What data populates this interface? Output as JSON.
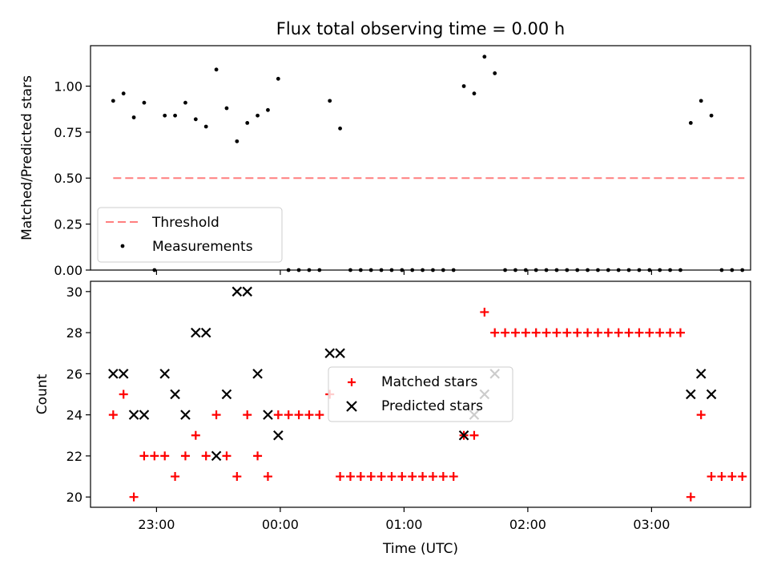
{
  "figure": {
    "title": "Flux total observing time = 0.00 h",
    "xlabel": "Time (UTC)"
  },
  "chart_data": [
    {
      "type": "scatter",
      "ylabel": "Matched/Predicted stars",
      "ylim": [
        0,
        1.22
      ],
      "yticks": [
        0.0,
        0.25,
        0.5,
        0.75,
        1.0
      ],
      "ytick_labels": [
        "0.00",
        "0.25",
        "0.50",
        "0.75",
        "1.00"
      ],
      "xlim": [
        "22:28",
        "03:48"
      ],
      "xticks": [
        "23:00",
        "00:00",
        "01:00",
        "02:00",
        "03:00"
      ],
      "legend_position": "lower-left",
      "series": [
        {
          "name": "Threshold",
          "kind": "dashed-line",
          "color": "#ff7f7f",
          "points": [
            [
              "22:39",
              0.5
            ],
            [
              "03:45",
              0.5
            ]
          ]
        },
        {
          "name": "Measurements",
          "kind": "dot",
          "color": "#000000",
          "points": [
            [
              "22:39",
              0.92
            ],
            [
              "22:44",
              0.96
            ],
            [
              "22:49",
              0.83
            ],
            [
              "22:54",
              0.91
            ],
            [
              "22:59",
              0.0
            ],
            [
              "23:04",
              0.84
            ],
            [
              "23:09",
              0.84
            ],
            [
              "23:14",
              0.91
            ],
            [
              "23:19",
              0.82
            ],
            [
              "23:24",
              0.78
            ],
            [
              "23:29",
              1.09
            ],
            [
              "23:34",
              0.88
            ],
            [
              "23:39",
              0.7
            ],
            [
              "23:44",
              0.8
            ],
            [
              "23:49",
              0.84
            ],
            [
              "23:54",
              0.87
            ],
            [
              "23:59",
              1.04
            ],
            [
              "00:04",
              0.0
            ],
            [
              "00:09",
              0.0
            ],
            [
              "00:14",
              0.0
            ],
            [
              "00:19",
              0.0
            ],
            [
              "00:24",
              0.92
            ],
            [
              "00:29",
              0.77
            ],
            [
              "00:34",
              0.0
            ],
            [
              "00:39",
              0.0
            ],
            [
              "00:44",
              0.0
            ],
            [
              "00:49",
              0.0
            ],
            [
              "00:54",
              0.0
            ],
            [
              "00:59",
              0.0
            ],
            [
              "01:04",
              0.0
            ],
            [
              "01:09",
              0.0
            ],
            [
              "01:14",
              0.0
            ],
            [
              "01:19",
              0.0
            ],
            [
              "01:24",
              0.0
            ],
            [
              "01:29",
              1.0
            ],
            [
              "01:34",
              0.96
            ],
            [
              "01:39",
              1.16
            ],
            [
              "01:44",
              1.07
            ],
            [
              "01:49",
              0.0
            ],
            [
              "01:54",
              0.0
            ],
            [
              "01:59",
              0.0
            ],
            [
              "02:04",
              0.0
            ],
            [
              "02:09",
              0.0
            ],
            [
              "02:14",
              0.0
            ],
            [
              "02:19",
              0.0
            ],
            [
              "02:24",
              0.0
            ],
            [
              "02:29",
              0.0
            ],
            [
              "02:34",
              0.0
            ],
            [
              "02:39",
              0.0
            ],
            [
              "02:44",
              0.0
            ],
            [
              "02:49",
              0.0
            ],
            [
              "02:54",
              0.0
            ],
            [
              "02:59",
              0.0
            ],
            [
              "03:04",
              0.0
            ],
            [
              "03:09",
              0.0
            ],
            [
              "03:14",
              0.0
            ],
            [
              "03:19",
              0.8
            ],
            [
              "03:24",
              0.92
            ],
            [
              "03:29",
              0.84
            ],
            [
              "03:34",
              0.0
            ],
            [
              "03:39",
              0.0
            ],
            [
              "03:44",
              0.0
            ]
          ]
        }
      ]
    },
    {
      "type": "scatter",
      "ylabel": "Count",
      "ylim": [
        19.5,
        30.5
      ],
      "yticks": [
        20,
        22,
        24,
        26,
        28,
        30
      ],
      "ytick_labels": [
        "20",
        "22",
        "24",
        "26",
        "28",
        "30"
      ],
      "xlim": [
        "22:28",
        "03:48"
      ],
      "xticks": [
        "23:00",
        "00:00",
        "01:00",
        "02:00",
        "03:00"
      ],
      "xtick_labels": [
        "23:00",
        "00:00",
        "01:00",
        "02:00",
        "03:00"
      ],
      "legend_position": "center",
      "series": [
        {
          "name": "Matched stars",
          "kind": "plus",
          "color": "#ff0000",
          "points": [
            [
              "22:39",
              24
            ],
            [
              "22:44",
              25
            ],
            [
              "22:49",
              20
            ],
            [
              "22:54",
              22
            ],
            [
              "22:59",
              22
            ],
            [
              "23:04",
              22
            ],
            [
              "23:09",
              21
            ],
            [
              "23:14",
              22
            ],
            [
              "23:19",
              23
            ],
            [
              "23:24",
              22
            ],
            [
              "23:29",
              24
            ],
            [
              "23:34",
              22
            ],
            [
              "23:39",
              21
            ],
            [
              "23:44",
              24
            ],
            [
              "23:49",
              22
            ],
            [
              "23:54",
              21
            ],
            [
              "23:59",
              24
            ],
            [
              "00:04",
              24
            ],
            [
              "00:09",
              24
            ],
            [
              "00:14",
              24
            ],
            [
              "00:19",
              24
            ],
            [
              "00:24",
              25
            ],
            [
              "00:29",
              21
            ],
            [
              "00:34",
              21
            ],
            [
              "00:39",
              21
            ],
            [
              "00:44",
              21
            ],
            [
              "00:49",
              21
            ],
            [
              "00:54",
              21
            ],
            [
              "00:59",
              21
            ],
            [
              "01:04",
              21
            ],
            [
              "01:09",
              21
            ],
            [
              "01:14",
              21
            ],
            [
              "01:19",
              21
            ],
            [
              "01:24",
              21
            ],
            [
              "01:29",
              23
            ],
            [
              "01:34",
              23
            ],
            [
              "01:39",
              29
            ],
            [
              "01:44",
              28
            ],
            [
              "01:49",
              28
            ],
            [
              "01:54",
              28
            ],
            [
              "01:59",
              28
            ],
            [
              "02:04",
              28
            ],
            [
              "02:09",
              28
            ],
            [
              "02:14",
              28
            ],
            [
              "02:19",
              28
            ],
            [
              "02:24",
              28
            ],
            [
              "02:29",
              28
            ],
            [
              "02:34",
              28
            ],
            [
              "02:39",
              28
            ],
            [
              "02:44",
              28
            ],
            [
              "02:49",
              28
            ],
            [
              "02:54",
              28
            ],
            [
              "02:59",
              28
            ],
            [
              "03:04",
              28
            ],
            [
              "03:09",
              28
            ],
            [
              "03:14",
              28
            ],
            [
              "03:19",
              20
            ],
            [
              "03:24",
              24
            ],
            [
              "03:29",
              21
            ],
            [
              "03:34",
              21
            ],
            [
              "03:39",
              21
            ],
            [
              "03:44",
              21
            ]
          ]
        },
        {
          "name": "Predicted stars",
          "kind": "x",
          "color": "#000000",
          "points": [
            [
              "22:39",
              26
            ],
            [
              "22:44",
              26
            ],
            [
              "22:49",
              24
            ],
            [
              "22:54",
              24
            ],
            [
              "23:04",
              26
            ],
            [
              "23:09",
              25
            ],
            [
              "23:14",
              24
            ],
            [
              "23:19",
              28
            ],
            [
              "23:24",
              28
            ],
            [
              "23:29",
              22
            ],
            [
              "23:34",
              25
            ],
            [
              "23:39",
              30
            ],
            [
              "23:44",
              30
            ],
            [
              "23:49",
              26
            ],
            [
              "23:54",
              24
            ],
            [
              "23:59",
              23
            ],
            [
              "00:24",
              27
            ],
            [
              "00:29",
              27
            ],
            [
              "01:29",
              23
            ],
            [
              "01:34",
              24
            ],
            [
              "01:39",
              25
            ],
            [
              "01:44",
              26
            ],
            [
              "03:19",
              25
            ],
            [
              "03:24",
              26
            ],
            [
              "03:29",
              25
            ]
          ]
        }
      ]
    }
  ]
}
